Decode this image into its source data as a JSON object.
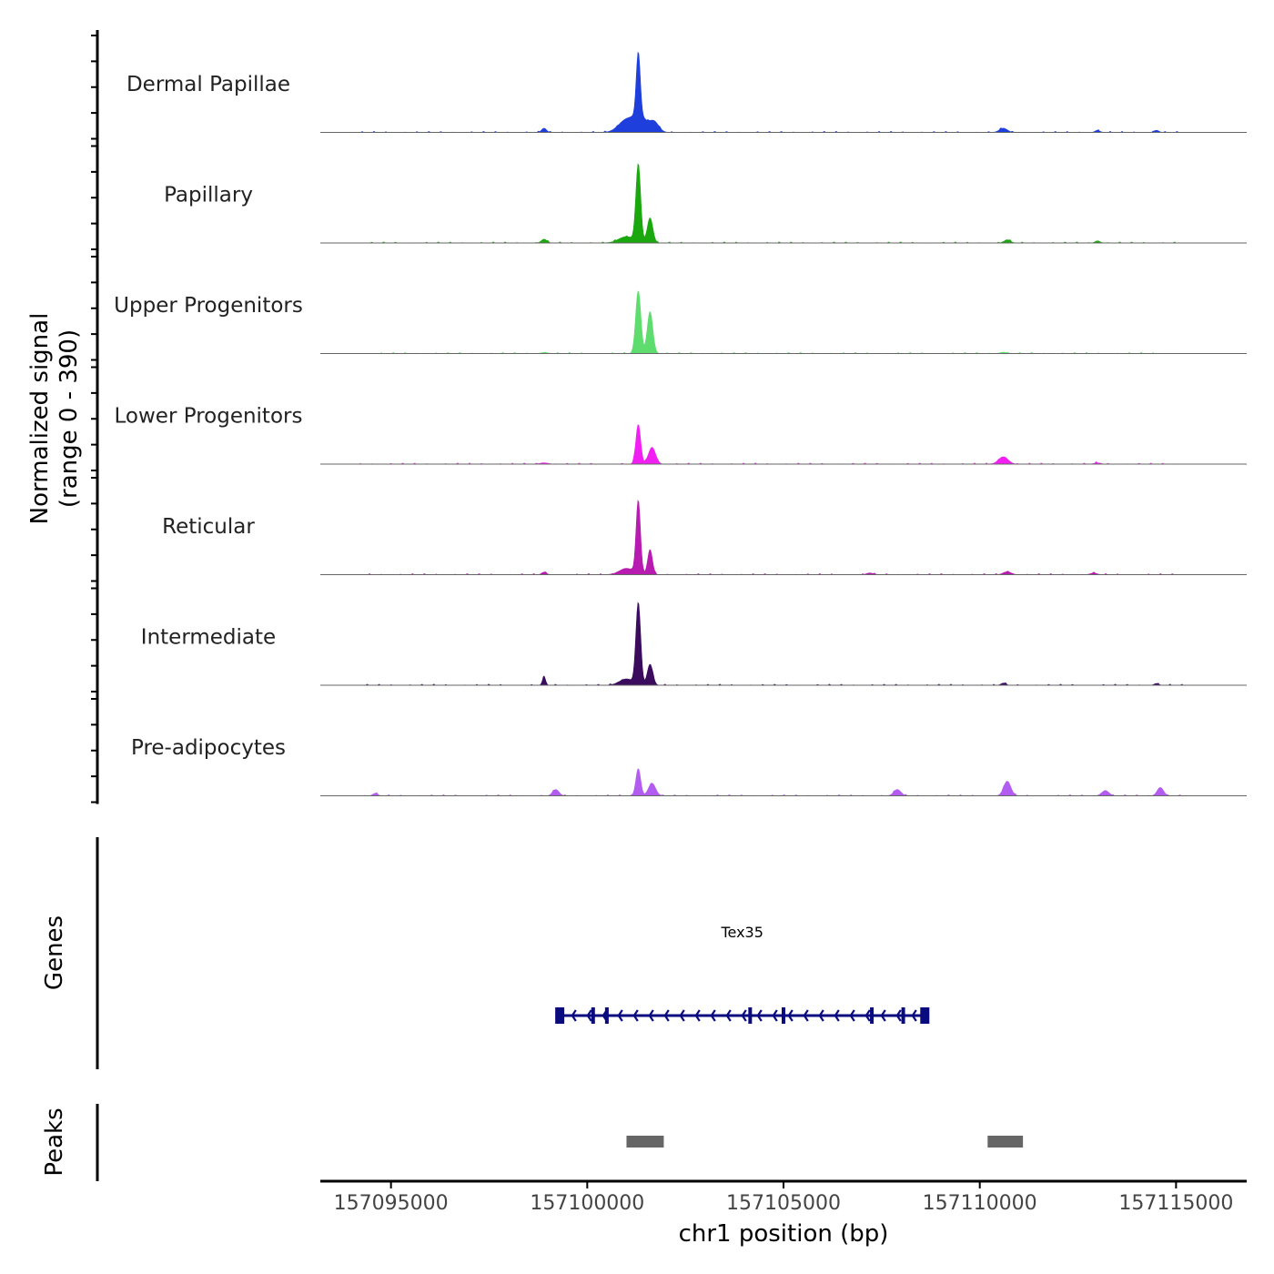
{
  "chart_data": {
    "type": "coverage",
    "chromosome": "chr1",
    "x_range": [
      157093200,
      157116800
    ],
    "y_axis_title": [
      "Normalized signal",
      "(range 0 - 390)"
    ],
    "x_axis_title": "chr1 position (bp)",
    "x_ticks": [
      157095000,
      157100000,
      157105000,
      157110000,
      157115000
    ],
    "x_tick_labels": [
      "157095000",
      "157100000",
      "157105000",
      "157110000",
      "157115000"
    ],
    "signal_range": [
      0,
      390
    ],
    "tracks": [
      {
        "name": "Dermal Papillae",
        "color": "#1f3fdd",
        "peaks": [
          [
            157101300,
            300,
            50
          ],
          [
            157101350,
            70,
            160
          ],
          [
            157101000,
            60,
            200
          ],
          [
            157101700,
            50,
            120
          ],
          [
            157098900,
            20,
            60
          ],
          [
            157110600,
            20,
            100
          ],
          [
            157113000,
            10,
            60
          ],
          [
            157114500,
            10,
            60
          ]
        ]
      },
      {
        "name": "Papillary",
        "color": "#1aa80e",
        "peaks": [
          [
            157101300,
            370,
            60
          ],
          [
            157101600,
            120,
            70
          ],
          [
            157101000,
            30,
            200
          ],
          [
            157098900,
            18,
            70
          ],
          [
            157110700,
            15,
            80
          ],
          [
            157113000,
            10,
            60
          ]
        ]
      },
      {
        "name": "Upper Progenitors",
        "color": "#5edd6e",
        "peaks": [
          [
            157101300,
            300,
            65
          ],
          [
            157101600,
            200,
            70
          ],
          [
            157098900,
            5,
            80
          ],
          [
            157110600,
            6,
            80
          ]
        ]
      },
      {
        "name": "Lower Progenitors",
        "color": "#f21ff2",
        "peaks": [
          [
            157101300,
            190,
            60
          ],
          [
            157101650,
            80,
            90
          ],
          [
            157110600,
            35,
            120
          ],
          [
            157098900,
            6,
            100
          ],
          [
            157113000,
            6,
            80
          ]
        ]
      },
      {
        "name": "Reticular",
        "color": "#b71bb0",
        "peaks": [
          [
            157101300,
            350,
            55
          ],
          [
            157101600,
            120,
            60
          ],
          [
            157101000,
            30,
            180
          ],
          [
            157098900,
            12,
            60
          ],
          [
            157110700,
            14,
            100
          ],
          [
            157107200,
            8,
            80
          ],
          [
            157112900,
            8,
            80
          ]
        ]
      },
      {
        "name": "Intermediate",
        "color": "#3b0b5e",
        "peaks": [
          [
            157101300,
            390,
            60
          ],
          [
            157101600,
            100,
            70
          ],
          [
            157101000,
            30,
            180
          ],
          [
            157098900,
            40,
            40
          ],
          [
            157110600,
            10,
            60
          ],
          [
            157114500,
            8,
            60
          ]
        ]
      },
      {
        "name": "Pre-adipocytes",
        "color": "#b25cf0",
        "peaks": [
          [
            157101300,
            130,
            60
          ],
          [
            157101650,
            60,
            90
          ],
          [
            157110700,
            70,
            90
          ],
          [
            157107900,
            30,
            90
          ],
          [
            157114600,
            40,
            80
          ],
          [
            157113200,
            25,
            90
          ],
          [
            157099200,
            30,
            80
          ],
          [
            157094600,
            12,
            60
          ]
        ]
      }
    ],
    "genes": {
      "title": "Genes",
      "items": [
        {
          "name": "Tex35",
          "start": 157099200,
          "end": 157108700,
          "strand": "-",
          "exons": [
            157099300,
            157100150,
            157100500,
            157104150,
            157105000,
            157107250,
            157108050,
            157108600
          ]
        }
      ]
    },
    "peaks_track": {
      "title": "Peaks",
      "color": "#666666",
      "regions": [
        [
          157101000,
          157101950
        ],
        [
          157110200,
          157111100
        ]
      ]
    }
  }
}
